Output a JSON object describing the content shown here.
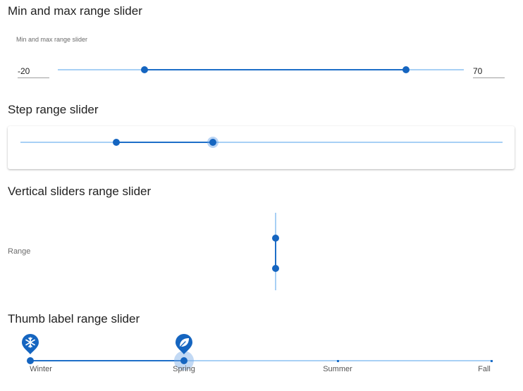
{
  "sections": {
    "min_max": {
      "title": "Min and max range slider",
      "caption": "Min and max range slider",
      "min_value": "-20",
      "max_value": "70",
      "range_min": -50,
      "range_max": 90
    },
    "step": {
      "title": "Step range slider"
    },
    "vertical": {
      "title": "Vertical sliders range slider",
      "label": "Range"
    },
    "thumb_label": {
      "title": "Thumb label range slider",
      "ticks": [
        "Winter",
        "Spring",
        "Summer",
        "Fall"
      ],
      "icons": [
        "snowflake-icon",
        "leaf-icon"
      ]
    }
  },
  "colors": {
    "accent": "#1565c0",
    "track_active": "#1e6fc8",
    "track_inactive": "#a8d0f5"
  }
}
